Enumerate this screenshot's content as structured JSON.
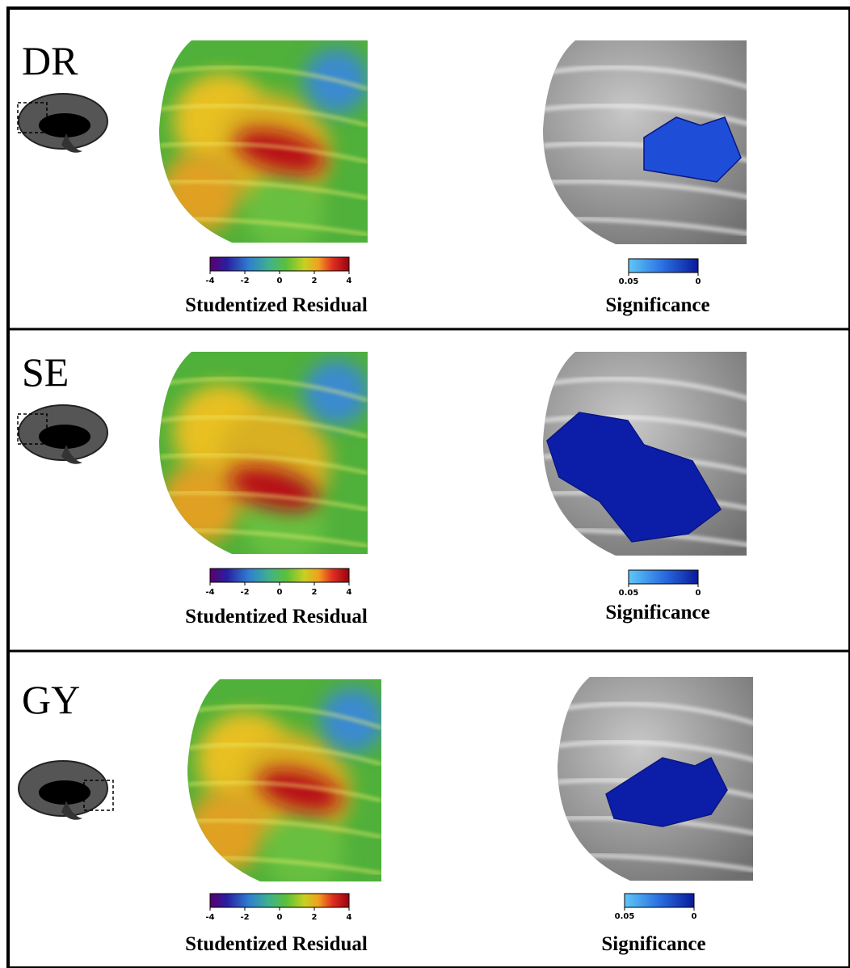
{
  "panels": [
    {
      "label": "DR",
      "residual": {
        "ticks": [
          -4,
          -2,
          0,
          2,
          4
        ],
        "title": "Studentized Residual"
      },
      "significance": {
        "ticks": [
          0.05,
          0
        ],
        "title": "Significance"
      }
    },
    {
      "label": "SE",
      "residual": {
        "ticks": [
          -4,
          -2,
          0,
          2,
          4
        ],
        "title": "Studentized Residual"
      },
      "significance": {
        "ticks": [
          0.05,
          0
        ],
        "title": "Significance"
      }
    },
    {
      "label": "GY",
      "residual": {
        "ticks": [
          -4,
          -2,
          0,
          2,
          4
        ],
        "title": "Studentized Residual"
      },
      "significance": {
        "ticks": [
          0.05,
          0
        ],
        "title": "Significance"
      }
    }
  ]
}
